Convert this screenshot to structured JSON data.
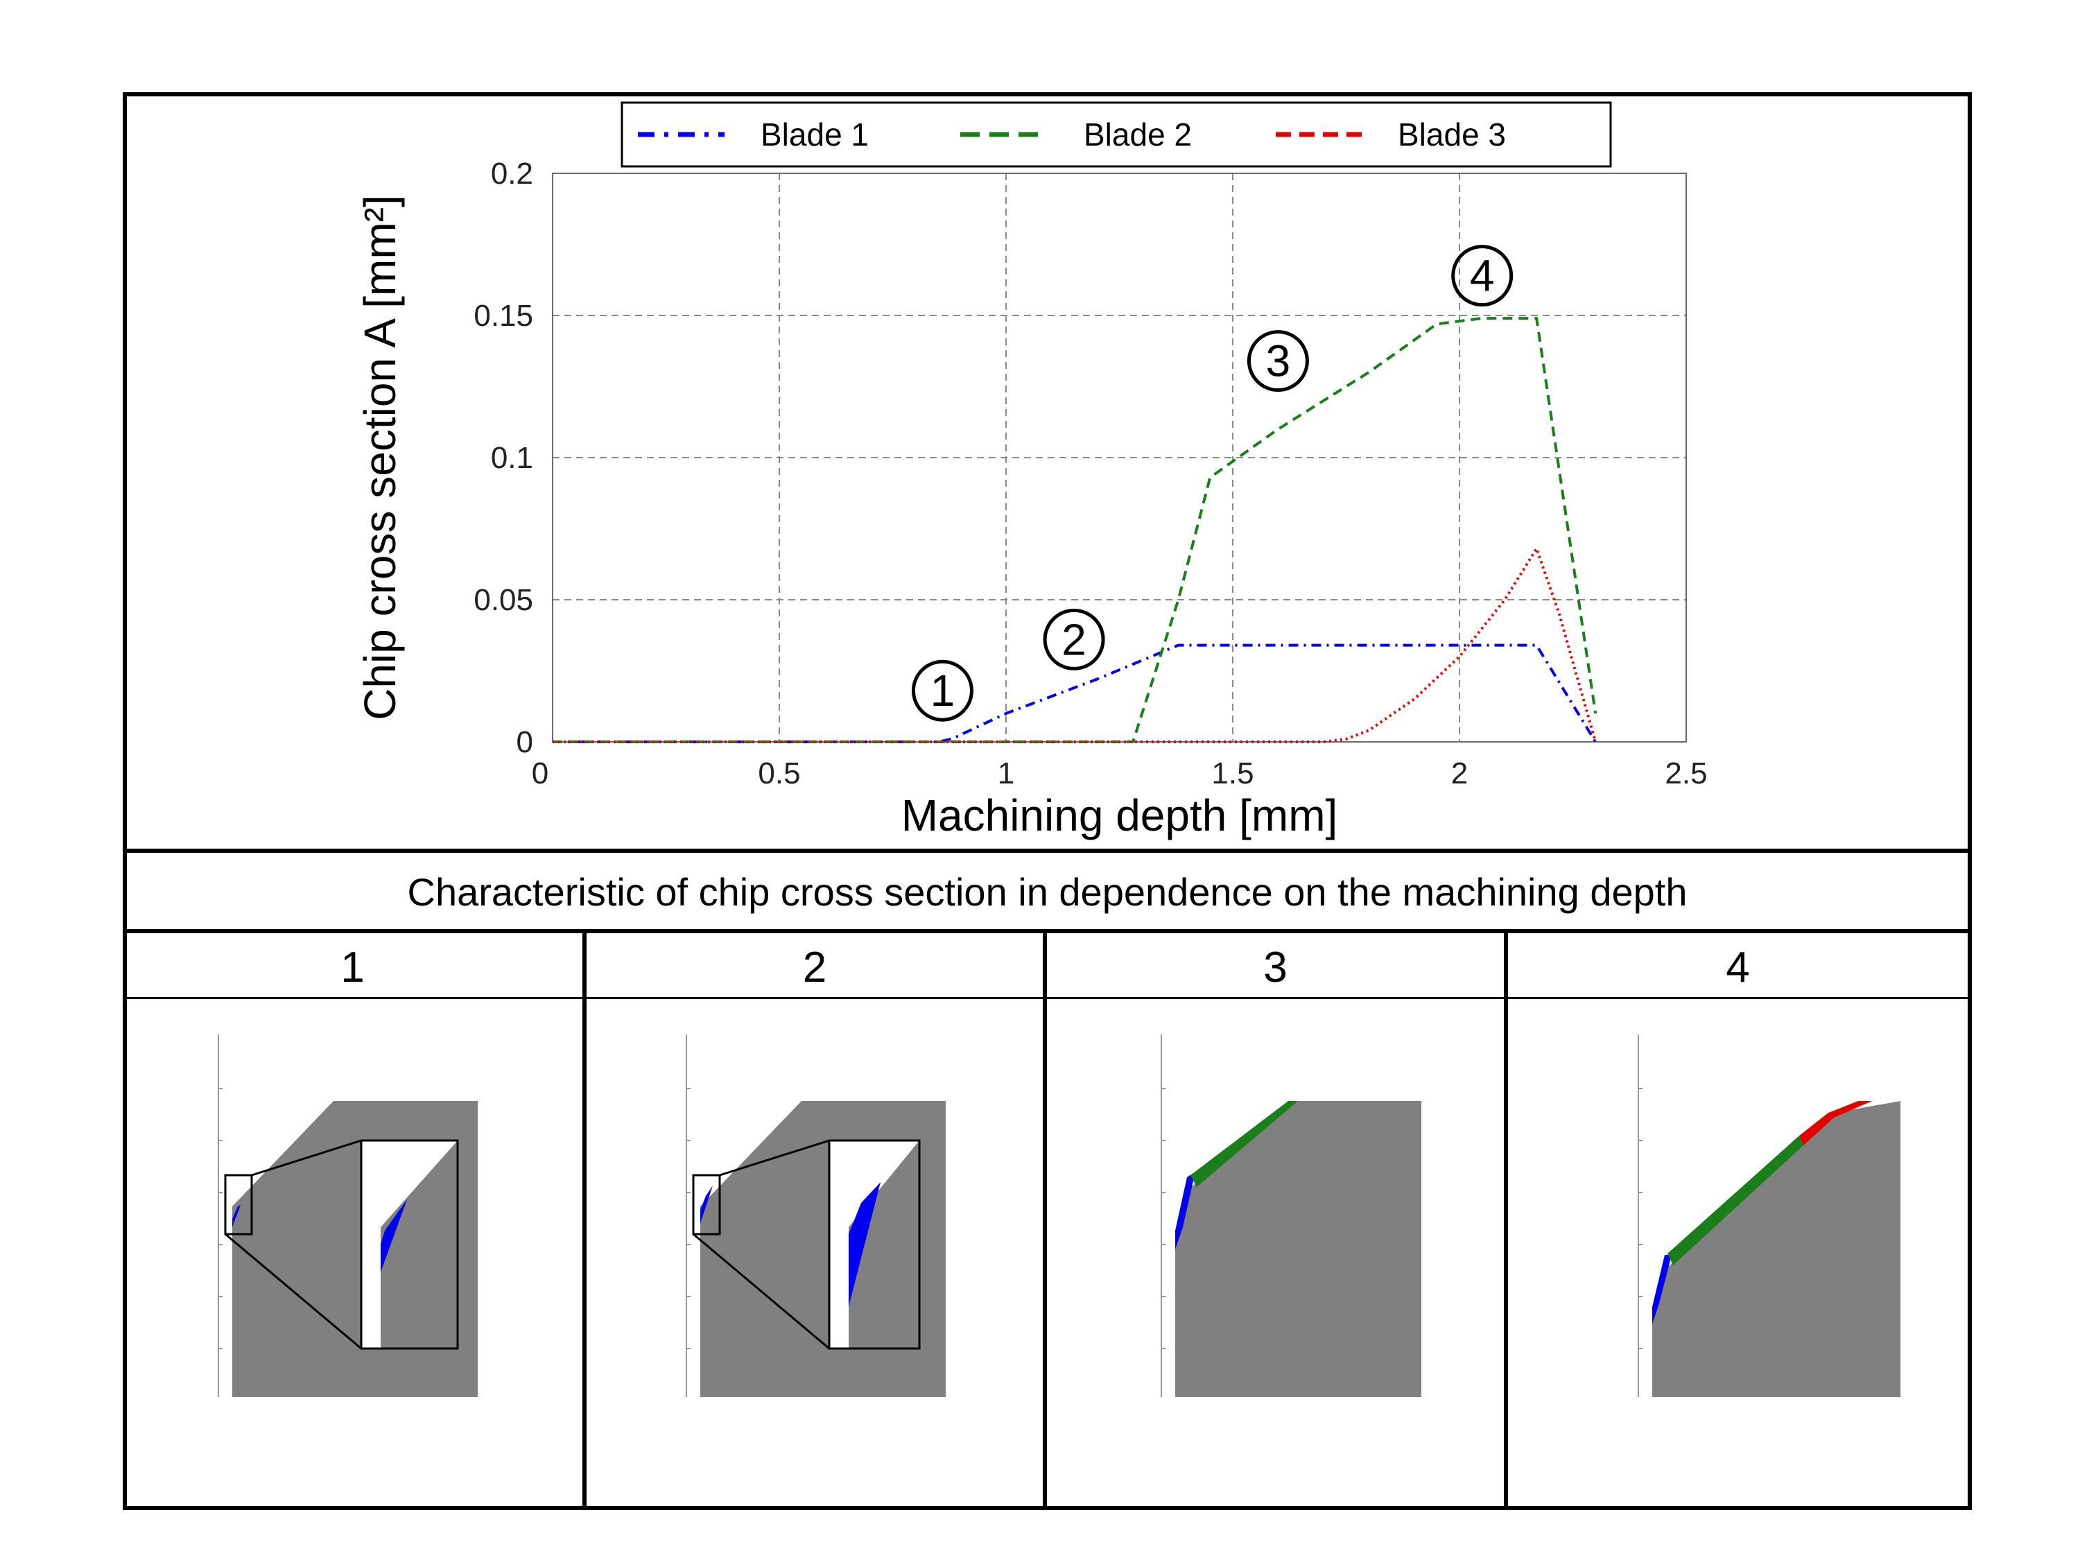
{
  "chart_data": {
    "type": "line",
    "xlabel": "Machining depth [mm]",
    "ylabel": "Chip cross section A [mm²]",
    "xlim": [
      0,
      2.5
    ],
    "ylim": [
      0,
      0.2
    ],
    "xticks": [
      "0",
      "0.5",
      "1",
      "1.5",
      "2",
      "2.5"
    ],
    "yticks": [
      "0",
      "0.05",
      "0.1",
      "0.15",
      "0.2"
    ],
    "grid": true,
    "legend_position": "top-center",
    "series": [
      {
        "name": "Blade 1",
        "color": "#0000ee",
        "dash": "dashdot",
        "x": [
          0,
          0.85,
          0.88,
          1.0,
          1.2,
          1.38,
          2.17,
          2.3
        ],
        "y": [
          0,
          0,
          0.001,
          0.01,
          0.022,
          0.034,
          0.034,
          0
        ]
      },
      {
        "name": "Blade 2",
        "color": "#1a7f1a",
        "dash": "dashed",
        "x": [
          0,
          1.28,
          1.38,
          1.45,
          1.6,
          1.8,
          1.95,
          2.05,
          2.17,
          2.3
        ],
        "y": [
          0,
          0,
          0.05,
          0.093,
          0.11,
          0.13,
          0.147,
          0.149,
          0.149,
          0.01
        ]
      },
      {
        "name": "Blade 3",
        "color": "#e00000",
        "dash": "dotted",
        "x": [
          0,
          1.7,
          1.75,
          1.8,
          1.9,
          2.0,
          2.1,
          2.17,
          2.22,
          2.3
        ],
        "y": [
          0,
          0,
          0.001,
          0.004,
          0.015,
          0.03,
          0.05,
          0.068,
          0.045,
          0
        ]
      }
    ],
    "annotations": [
      {
        "label": "1",
        "x": 0.86,
        "y": 0.018
      },
      {
        "label": "2",
        "x": 1.15,
        "y": 0.036
      },
      {
        "label": "3",
        "x": 1.6,
        "y": 0.134
      },
      {
        "label": "4",
        "x": 2.05,
        "y": 0.164
      }
    ]
  },
  "caption": "Characteristic of chip cross section in dependence on the machining depth",
  "panels": [
    {
      "label": "1",
      "chip_colors": [
        "#0000ee"
      ]
    },
    {
      "label": "2",
      "chip_colors": [
        "#0000ee"
      ]
    },
    {
      "label": "3",
      "chip_colors": [
        "#0000ee",
        "#1a7f1a"
      ]
    },
    {
      "label": "4",
      "chip_colors": [
        "#0000ee",
        "#1a7f1a",
        "#e00000"
      ]
    }
  ],
  "colors": {
    "workpiece": "#808080",
    "frame": "#000000"
  }
}
